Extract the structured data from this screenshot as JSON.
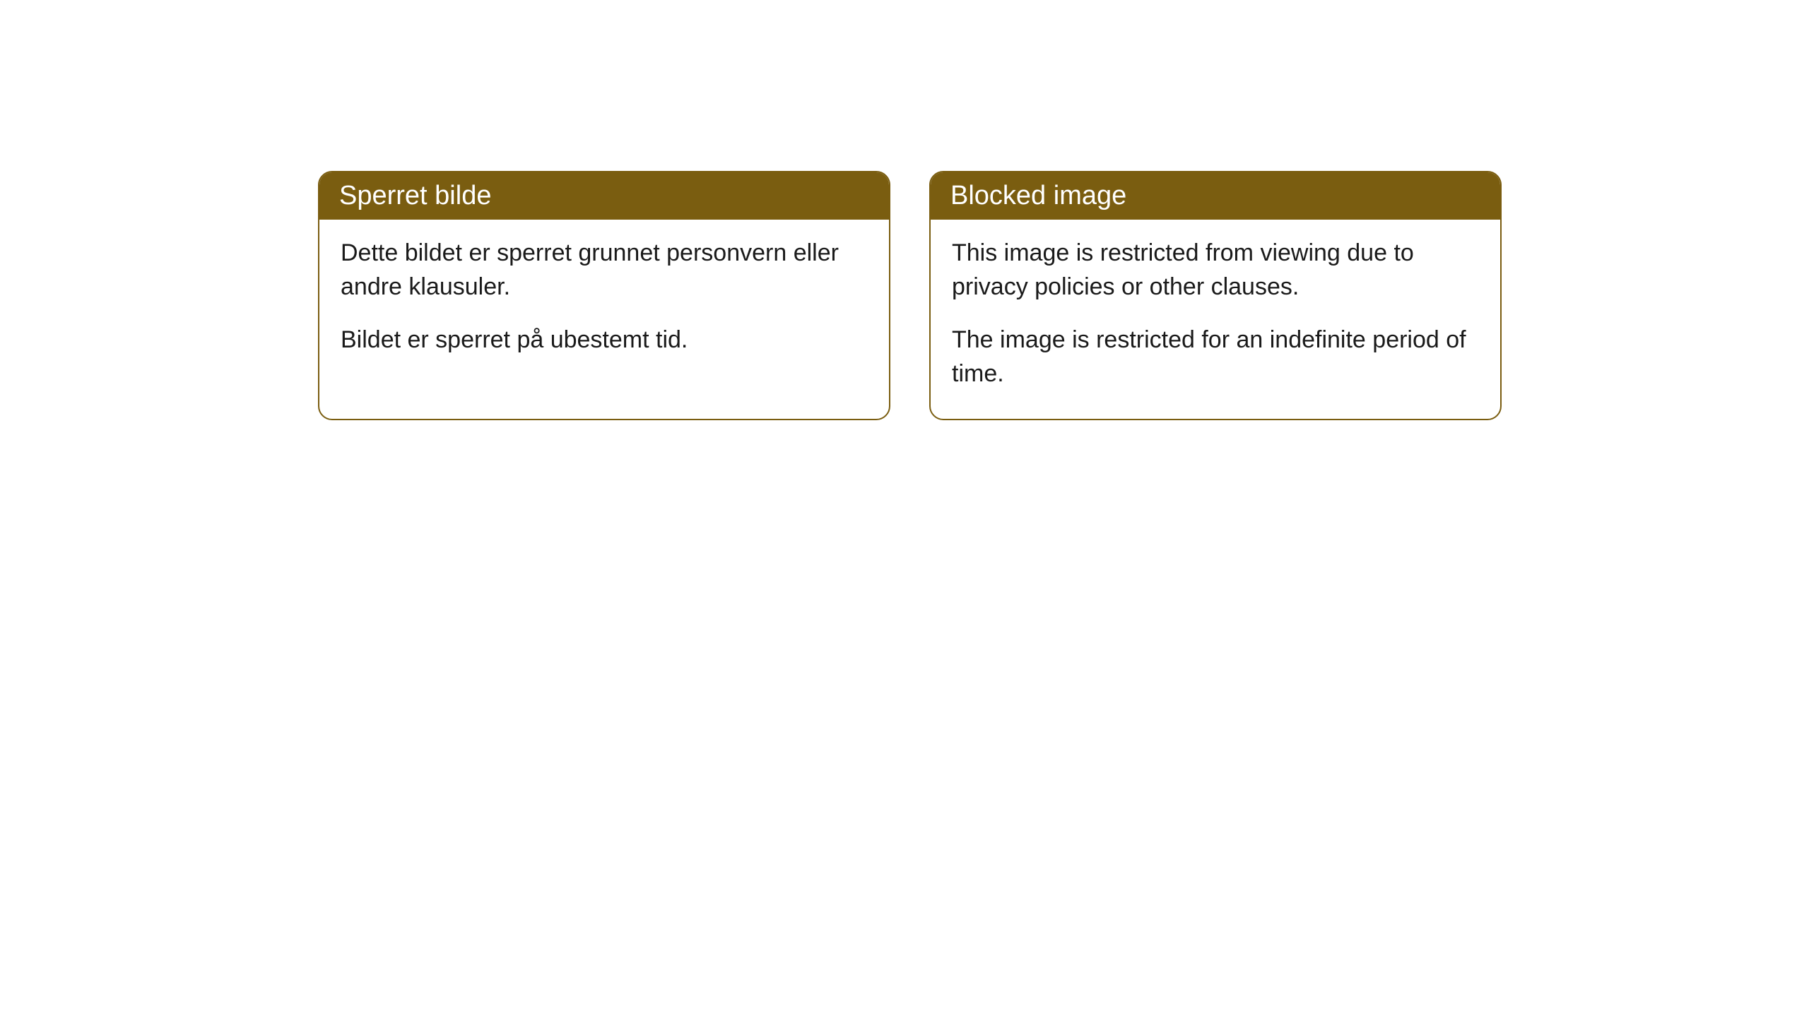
{
  "cards": [
    {
      "title": "Sperret bilde",
      "paragraph1": "Dette bildet er sperret grunnet personvern eller andre klausuler.",
      "paragraph2": "Bildet er sperret på ubestemt tid."
    },
    {
      "title": "Blocked image",
      "paragraph1": "This image is restricted from viewing due to privacy policies or other clauses.",
      "paragraph2": "The image is restricted for an indefinite period of time."
    }
  ],
  "styling": {
    "header_background_color": "#7a5d10",
    "header_text_color": "#ffffff",
    "card_border_color": "#7a5d10",
    "card_background_color": "#ffffff",
    "body_text_color": "#1a1a1a",
    "page_background_color": "#ffffff",
    "border_radius": 20,
    "border_width": 2,
    "header_fontsize": 38,
    "body_fontsize": 34
  }
}
